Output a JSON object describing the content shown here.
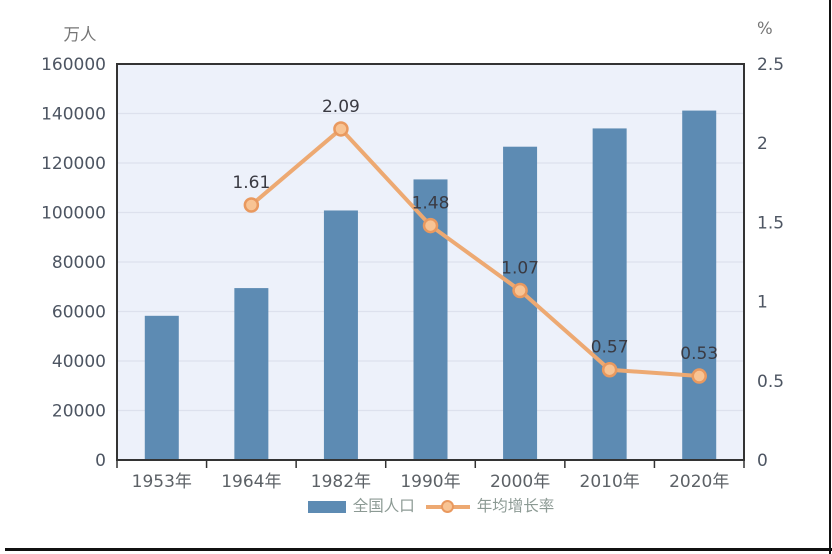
{
  "page": {
    "background": "#ffffff"
  },
  "chart_data": {
    "type": "bar+line",
    "categories": [
      "1953年",
      "1964年",
      "1982年",
      "1990年",
      "2000年",
      "2010年",
      "2020年"
    ],
    "series": [
      {
        "name": "全国人口",
        "type": "bar",
        "axis": "left",
        "unit": "万人",
        "values": [
          58260,
          69458,
          100818,
          113368,
          126583,
          133972,
          141178
        ]
      },
      {
        "name": "年均增长率",
        "type": "line",
        "axis": "right",
        "unit": "%",
        "values": [
          null,
          1.61,
          2.09,
          1.48,
          1.07,
          0.57,
          0.53
        ],
        "labels": [
          "",
          "1.61",
          "2.09",
          "1.48",
          "1.07",
          "0.57",
          "0.53"
        ]
      }
    ],
    "left_axis": {
      "title": "万人",
      "min": 0,
      "max": 160000,
      "step": 20000,
      "ticks": [
        "160000",
        "140000",
        "120000",
        "100000",
        "80000",
        "60000",
        "40000",
        "20000",
        "0"
      ]
    },
    "right_axis": {
      "title": "%",
      "min": 0,
      "max": 2.5,
      "step": 0.5,
      "ticks": [
        "2.5",
        "2",
        "1.5",
        "1",
        "0.5",
        "0"
      ]
    },
    "grid": "horizontal",
    "legend_position": "bottom-center"
  },
  "colors": {
    "bar": "#5D8BB3",
    "line": "#EDA972",
    "marker_fill": "#F8C494",
    "marker_stroke": "#E9995F",
    "plot_bg": "#EDF1FA",
    "grid": "#DDE1ED",
    "frame": "#333333",
    "data_label": "#3A3A42",
    "axis_text": "#4D5562",
    "x_axis_text": "#5C6166",
    "legend_text": "#8C9A94",
    "unit_text": "#757575",
    "page_border": "#111111"
  }
}
